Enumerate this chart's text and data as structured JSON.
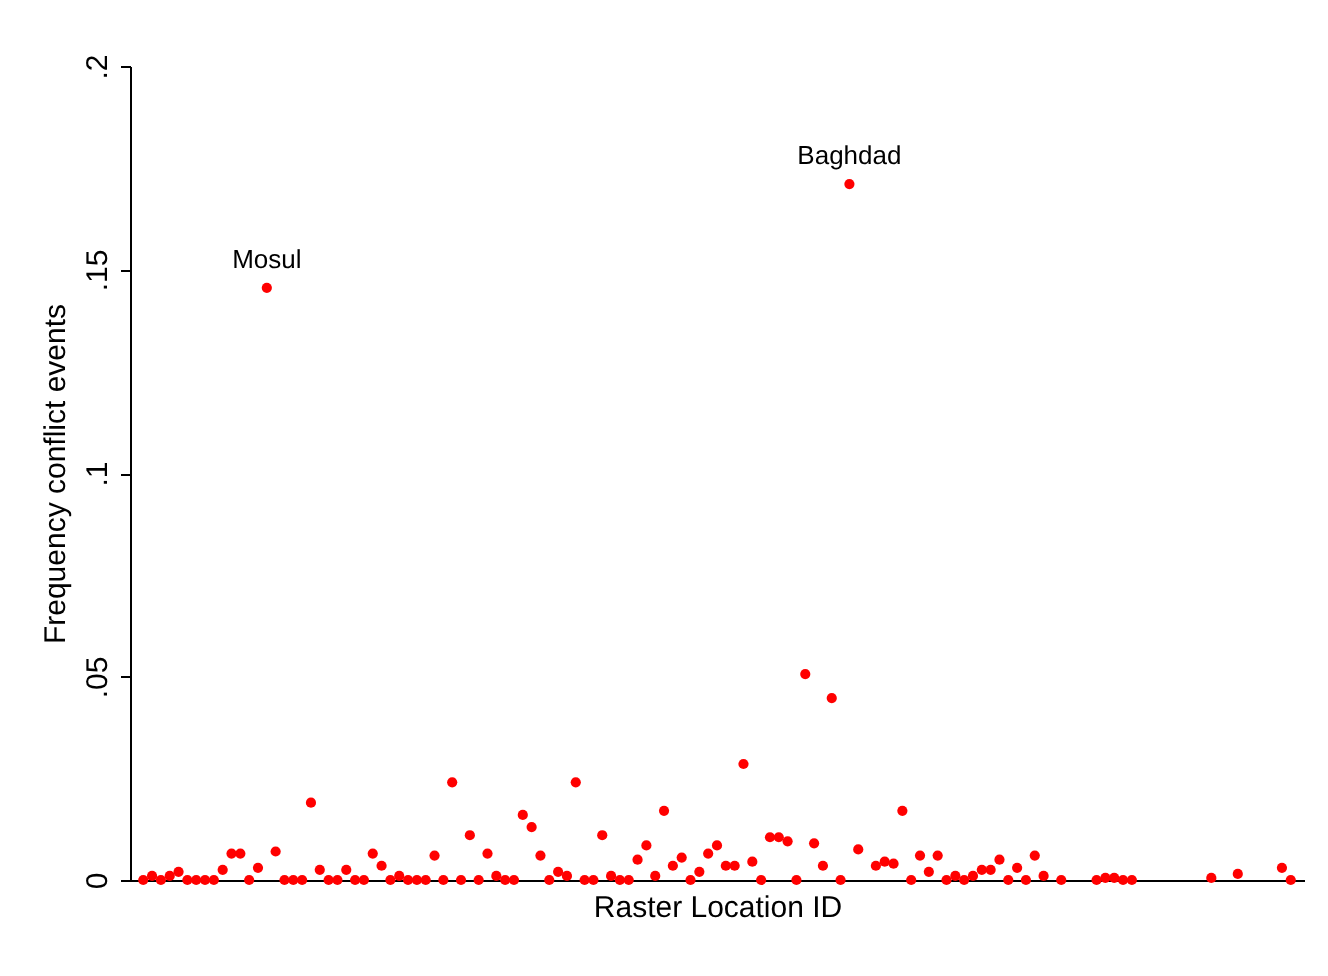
{
  "chart_data": {
    "type": "scatter",
    "xlabel": "Raster Location ID",
    "ylabel": "Frequency conflict events",
    "categories": [
      null,
      null,
      null,
      null,
      null,
      null,
      null,
      null,
      null,
      null,
      null,
      null,
      null,
      null,
      null,
      null,
      null,
      null,
      null,
      null,
      null,
      null,
      null,
      null,
      null,
      null,
      null,
      null,
      null,
      null,
      null,
      null,
      null,
      null,
      null,
      null,
      null,
      null,
      null,
      null,
      null,
      null,
      null,
      null,
      null,
      null,
      null,
      null,
      null,
      null,
      null,
      null,
      null,
      null,
      null,
      null,
      null,
      null,
      null,
      null,
      null,
      null,
      null,
      null,
      null,
      null,
      null,
      null,
      null,
      null,
      null,
      null,
      null,
      null,
      null,
      null,
      null,
      null,
      null,
      null,
      null,
      null,
      null,
      null,
      null,
      null,
      null,
      null,
      null,
      null,
      null,
      null,
      null,
      null,
      null,
      null,
      null,
      null,
      null,
      null,
      null,
      null,
      null,
      null,
      null,
      null,
      null,
      null,
      null,
      null,
      null,
      null,
      null,
      null,
      null,
      null,
      null,
      null,
      null,
      null,
      null,
      null,
      null,
      null,
      null,
      null,
      null,
      null,
      null,
      null,
      null,
      null,
      null
    ],
    "values": [
      null,
      0,
      0.001,
      0,
      0.001,
      0.002,
      0,
      0,
      0,
      0,
      0.0025,
      0.0065,
      0.0065,
      0,
      0.003,
      0.1455,
      0.007,
      0,
      0,
      0,
      0.019,
      0.0025,
      0,
      0,
      0.0025,
      0,
      0,
      0.0065,
      0.0035,
      0,
      0.001,
      0,
      0,
      0,
      0.006,
      0,
      0.024,
      0,
      0.011,
      0,
      0.0065,
      0.001,
      0,
      0,
      0.016,
      0.013,
      0.006,
      0,
      0.002,
      0.001,
      0.024,
      0,
      0,
      0.011,
      0.001,
      0,
      0,
      0.005,
      0.0085,
      0.001,
      0.017,
      0.0035,
      0.0055,
      0,
      0.002,
      0.0065,
      0.0085,
      0.0035,
      0.0035,
      0.0285,
      0.0045,
      0,
      0.0105,
      0.0105,
      0.0095,
      0,
      0.0506,
      0.009,
      0.0035,
      0.0447,
      0,
      0.171,
      0.0075,
      null,
      0.0035,
      0.0045,
      0.004,
      0.017,
      0,
      0.006,
      0.002,
      0.006,
      0,
      0.001,
      0,
      0.001,
      0.0025,
      0.0025,
      0.005,
      0,
      0.003,
      0,
      0.006,
      0.001,
      null,
      0,
      null,
      null,
      null,
      0,
      0.0005,
      0.0005,
      0,
      0,
      null,
      null,
      null,
      null,
      null,
      null,
      null,
      null,
      0.0005,
      null,
      null,
      0.0015,
      null,
      null,
      null,
      null,
      0.003,
      0,
      null
    ],
    "color": "#ff0000",
    "marker": "circle",
    "ylim": [
      0,
      0.2
    ],
    "yticks": [
      {
        "value": 0,
        "label": "0"
      },
      {
        "value": 0.05,
        "label": ".05"
      },
      {
        "value": 0.1,
        "label": ".1"
      },
      {
        "value": 0.15,
        "label": ".15"
      },
      {
        "value": 0.2,
        "label": ".2"
      }
    ],
    "tick_labels": "y",
    "grid": false,
    "annotations": [
      {
        "text": "Mosul",
        "y": 0.1455
      },
      {
        "text": "Baghdad",
        "y": 0.171
      }
    ]
  }
}
